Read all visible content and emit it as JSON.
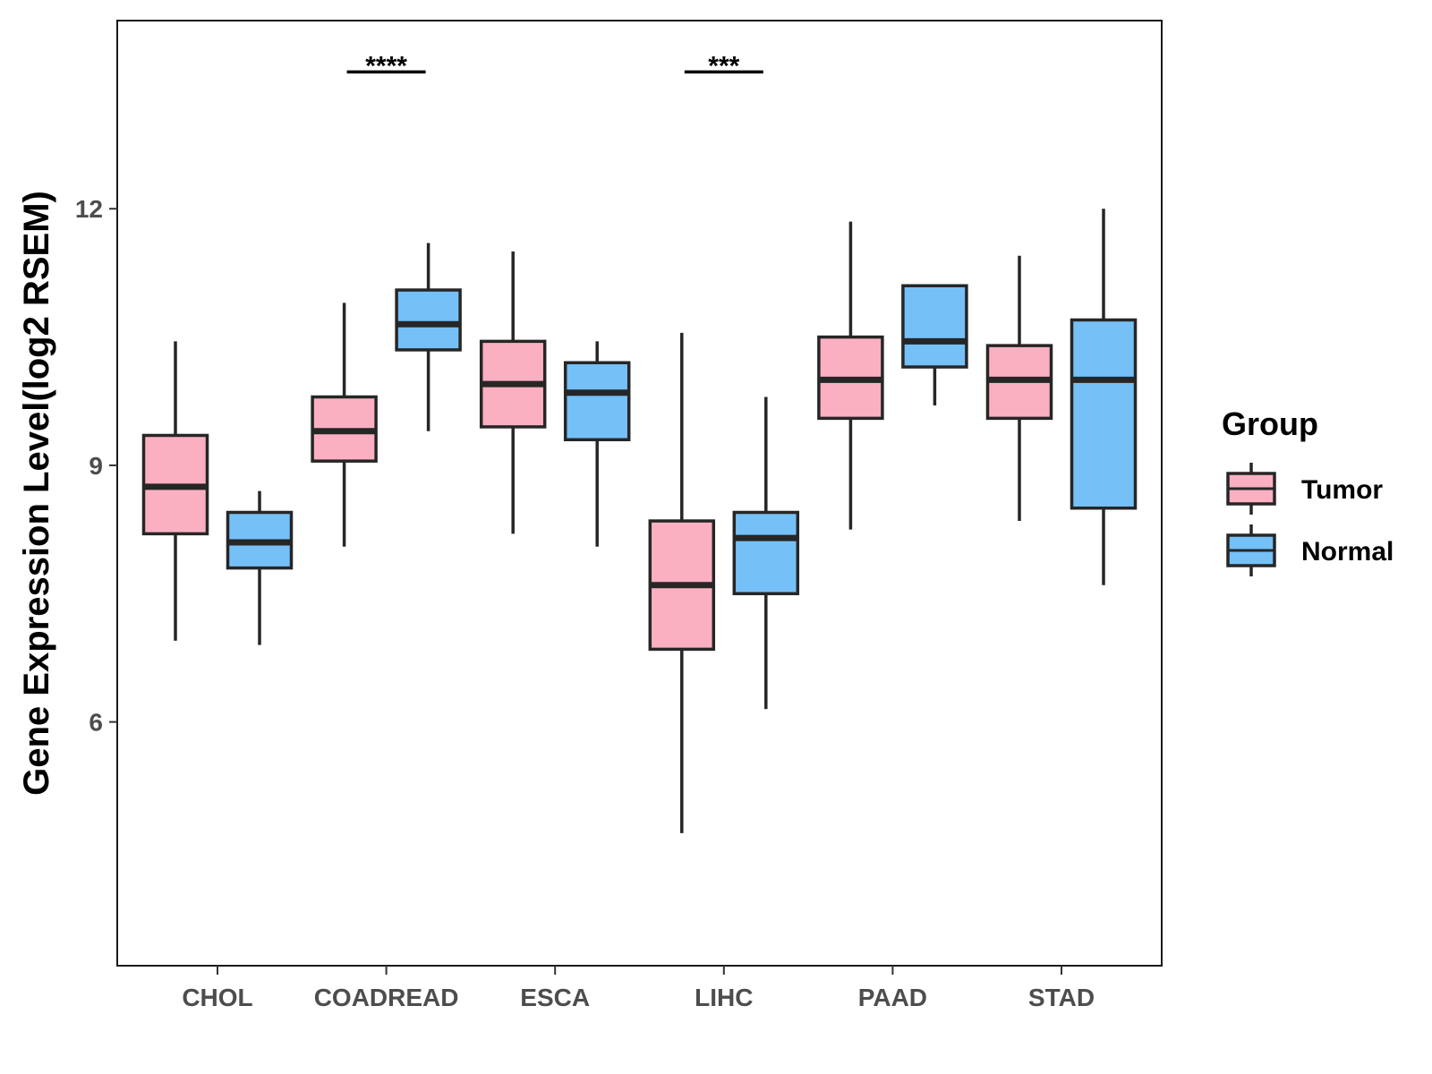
{
  "chart_data": {
    "type": "boxplot",
    "ylabel": "Gene Expression Level(log2 RSEM)",
    "xlabel": "",
    "ylim": [
      3.15,
      14.2
    ],
    "yticks": [
      6,
      9,
      12
    ],
    "categories": [
      "CHOL",
      "COADREAD",
      "ESCA",
      "LIHC",
      "PAAD",
      "STAD"
    ],
    "legend": {
      "title": "Group",
      "position": "right"
    },
    "series": [
      {
        "name": "Tumor",
        "color": "#FBB0C2",
        "boxes": [
          {
            "min": 6.95,
            "q1": 8.2,
            "median": 8.75,
            "q3": 9.35,
            "max": 10.45
          },
          {
            "min": 8.05,
            "q1": 9.05,
            "median": 9.4,
            "q3": 9.8,
            "max": 10.9
          },
          {
            "min": 8.2,
            "q1": 9.45,
            "median": 9.95,
            "q3": 10.45,
            "max": 11.5
          },
          {
            "min": 4.7,
            "q1": 6.85,
            "median": 7.6,
            "q3": 8.35,
            "max": 10.55
          },
          {
            "min": 8.25,
            "q1": 9.55,
            "median": 10.0,
            "q3": 10.5,
            "max": 11.85
          },
          {
            "min": 8.35,
            "q1": 9.55,
            "median": 10.0,
            "q3": 10.4,
            "max": 11.45
          }
        ]
      },
      {
        "name": "Normal",
        "color": "#75C0F7",
        "boxes": [
          {
            "min": 6.9,
            "q1": 7.8,
            "median": 8.1,
            "q3": 8.45,
            "max": 8.7
          },
          {
            "min": 9.4,
            "q1": 10.35,
            "median": 10.65,
            "q3": 11.05,
            "max": 11.6
          },
          {
            "min": 8.05,
            "q1": 9.3,
            "median": 9.85,
            "q3": 10.2,
            "max": 10.45
          },
          {
            "min": 6.15,
            "q1": 7.5,
            "median": 8.15,
            "q3": 8.45,
            "max": 9.8
          },
          {
            "min": 9.7,
            "q1": 10.15,
            "median": 10.45,
            "q3": 11.1,
            "max": 11.1
          },
          {
            "min": 7.6,
            "q1": 8.5,
            "median": 10.0,
            "q3": 10.7,
            "max": 12.0
          }
        ]
      }
    ],
    "annotations": [
      {
        "category": "COADREAD",
        "label": "****",
        "y": 13.6
      },
      {
        "category": "LIHC",
        "label": "***",
        "y": 13.6
      }
    ],
    "grid": false
  }
}
